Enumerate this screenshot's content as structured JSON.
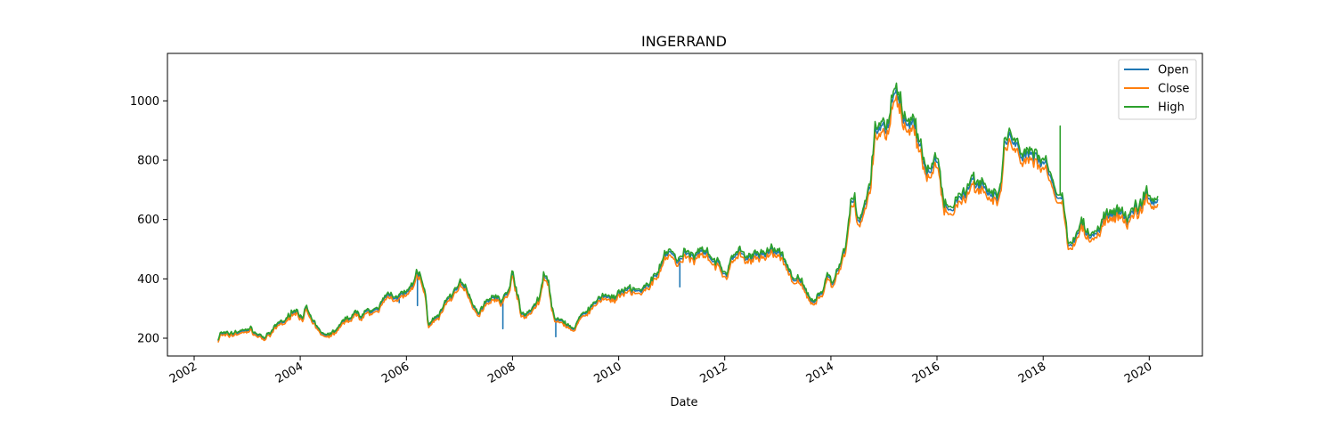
{
  "chart_data": {
    "type": "line",
    "title": "INGERRAND",
    "xlabel": "Date",
    "ylabel": "",
    "x_range": [
      "2001-07-01",
      "2021-01-01"
    ],
    "ylim": [
      140,
      1160
    ],
    "x_ticks": [
      "2002",
      "2004",
      "2006",
      "2008",
      "2010",
      "2012",
      "2014",
      "2016",
      "2018",
      "2020"
    ],
    "y_ticks": [
      200,
      400,
      600,
      800,
      1000
    ],
    "legend": "top-right",
    "grid": false,
    "series": [
      {
        "name": "Open",
        "color": "#1f77b4",
        "offset": 0,
        "spikes": [
          [
            "2005-11-15",
            320
          ],
          [
            "2006-03-20",
            310
          ],
          [
            "2007-10-25",
            232
          ],
          [
            "2008-10-25",
            205
          ],
          [
            "2011-03-01",
            373
          ]
        ]
      },
      {
        "name": "Close",
        "color": "#ff7f0e",
        "offset": -12,
        "spikes": []
      },
      {
        "name": "High",
        "color": "#2ca02c",
        "offset": 8,
        "spikes": [
          [
            "2018-05-01",
            915
          ]
        ]
      }
    ],
    "points": [
      [
        "2002-06-15",
        192
      ],
      [
        "2002-07-01",
        220
      ],
      [
        "2002-08-15",
        208
      ],
      [
        "2002-10-01",
        218
      ],
      [
        "2002-12-01",
        222
      ],
      [
        "2003-01-15",
        232
      ],
      [
        "2003-03-01",
        215
      ],
      [
        "2003-05-01",
        200
      ],
      [
        "2003-06-15",
        215
      ],
      [
        "2003-08-01",
        248
      ],
      [
        "2003-10-01",
        262
      ],
      [
        "2003-11-01",
        290
      ],
      [
        "2003-12-15",
        295
      ],
      [
        "2004-01-15",
        270
      ],
      [
        "2004-02-15",
        300
      ],
      [
        "2004-03-15",
        258
      ],
      [
        "2004-05-01",
        232
      ],
      [
        "2004-06-01",
        212
      ],
      [
        "2004-07-15",
        205
      ],
      [
        "2004-09-01",
        222
      ],
      [
        "2004-10-15",
        245
      ],
      [
        "2004-12-01",
        265
      ],
      [
        "2005-01-15",
        282
      ],
      [
        "2005-03-01",
        272
      ],
      [
        "2005-04-01",
        302
      ],
      [
        "2005-05-15",
        285
      ],
      [
        "2005-07-01",
        300
      ],
      [
        "2005-08-01",
        330
      ],
      [
        "2005-09-01",
        345
      ],
      [
        "2005-11-01",
        340
      ],
      [
        "2006-01-01",
        345
      ],
      [
        "2006-02-15",
        365
      ],
      [
        "2006-03-15",
        418
      ],
      [
        "2006-04-15",
        400
      ],
      [
        "2006-05-15",
        330
      ],
      [
        "2006-06-01",
        245
      ],
      [
        "2006-07-01",
        255
      ],
      [
        "2006-08-15",
        280
      ],
      [
        "2006-10-01",
        320
      ],
      [
        "2006-11-15",
        345
      ],
      [
        "2007-01-01",
        392
      ],
      [
        "2007-02-15",
        355
      ],
      [
        "2007-04-01",
        310
      ],
      [
        "2007-05-15",
        285
      ],
      [
        "2007-07-01",
        330
      ],
      [
        "2007-09-01",
        345
      ],
      [
        "2007-10-15",
        315
      ],
      [
        "2007-12-01",
        355
      ],
      [
        "2008-01-01",
        415
      ],
      [
        "2008-02-01",
        355
      ],
      [
        "2008-03-01",
        275
      ],
      [
        "2008-05-01",
        285
      ],
      [
        "2008-07-01",
        330
      ],
      [
        "2008-08-01",
        410
      ],
      [
        "2008-09-01",
        385
      ],
      [
        "2008-10-15",
        255
      ],
      [
        "2008-12-01",
        258
      ],
      [
        "2009-01-15",
        242
      ],
      [
        "2009-03-01",
        228
      ],
      [
        "2009-04-01",
        262
      ],
      [
        "2009-06-01",
        295
      ],
      [
        "2009-08-01",
        320
      ],
      [
        "2009-10-01",
        345
      ],
      [
        "2009-12-01",
        332
      ],
      [
        "2010-02-01",
        350
      ],
      [
        "2010-04-01",
        362
      ],
      [
        "2010-06-01",
        352
      ],
      [
        "2010-08-01",
        370
      ],
      [
        "2010-10-01",
        430
      ],
      [
        "2010-11-15",
        478
      ],
      [
        "2011-01-01",
        492
      ],
      [
        "2011-02-15",
        455
      ],
      [
        "2011-04-01",
        490
      ],
      [
        "2011-06-01",
        465
      ],
      [
        "2011-08-01",
        505
      ],
      [
        "2011-10-01",
        478
      ],
      [
        "2011-12-01",
        432
      ],
      [
        "2012-01-15",
        410
      ],
      [
        "2012-02-15",
        470
      ],
      [
        "2012-04-01",
        478
      ],
      [
        "2012-06-01",
        472
      ],
      [
        "2012-08-01",
        480
      ],
      [
        "2012-10-01",
        472
      ],
      [
        "2012-11-15",
        492
      ],
      [
        "2013-01-01",
        490
      ],
      [
        "2013-02-15",
        438
      ],
      [
        "2013-04-01",
        412
      ],
      [
        "2013-06-01",
        392
      ],
      [
        "2013-08-01",
        325
      ],
      [
        "2013-09-01",
        318
      ],
      [
        "2013-11-01",
        355
      ],
      [
        "2013-12-15",
        410
      ],
      [
        "2014-01-15",
        385
      ],
      [
        "2014-03-01",
        445
      ],
      [
        "2014-04-15",
        495
      ],
      [
        "2014-05-15",
        640
      ],
      [
        "2014-06-15",
        650
      ],
      [
        "2014-07-15",
        580
      ],
      [
        "2014-08-15",
        640
      ],
      [
        "2014-10-01",
        720
      ],
      [
        "2014-11-01",
        890
      ],
      [
        "2014-12-15",
        900
      ],
      [
        "2015-01-15",
        880
      ],
      [
        "2015-02-15",
        960
      ],
      [
        "2015-03-15",
        1060
      ],
      [
        "2015-04-15",
        1000
      ],
      [
        "2015-05-15",
        935
      ],
      [
        "2015-06-15",
        910
      ],
      [
        "2015-07-15",
        960
      ],
      [
        "2015-08-15",
        890
      ],
      [
        "2015-10-01",
        790
      ],
      [
        "2015-11-01",
        755
      ],
      [
        "2015-12-15",
        800
      ],
      [
        "2016-01-15",
        760
      ],
      [
        "2016-02-15",
        650
      ],
      [
        "2016-04-01",
        640
      ],
      [
        "2016-05-15",
        668
      ],
      [
        "2016-07-01",
        700
      ],
      [
        "2016-08-15",
        728
      ],
      [
        "2016-10-01",
        718
      ],
      [
        "2016-11-15",
        728
      ],
      [
        "2017-01-01",
        680
      ],
      [
        "2017-02-15",
        670
      ],
      [
        "2017-03-15",
        695
      ],
      [
        "2017-04-15",
        860
      ],
      [
        "2017-05-15",
        878
      ],
      [
        "2017-06-15",
        860
      ],
      [
        "2017-07-15",
        832
      ],
      [
        "2017-08-15",
        805
      ],
      [
        "2017-10-01",
        792
      ],
      [
        "2017-11-15",
        800
      ],
      [
        "2018-01-01",
        788
      ],
      [
        "2018-02-15",
        760
      ],
      [
        "2018-04-01",
        690
      ],
      [
        "2018-05-15",
        678
      ],
      [
        "2018-06-15",
        535
      ],
      [
        "2018-07-15",
        515
      ],
      [
        "2018-08-15",
        548
      ],
      [
        "2018-09-15",
        608
      ],
      [
        "2018-10-15",
        570
      ],
      [
        "2018-12-01",
        540
      ],
      [
        "2019-01-15",
        560
      ],
      [
        "2019-03-01",
        600
      ],
      [
        "2019-04-15",
        620
      ],
      [
        "2019-06-01",
        610
      ],
      [
        "2019-08-01",
        605
      ],
      [
        "2019-09-15",
        630
      ],
      [
        "2019-11-01",
        650
      ],
      [
        "2019-12-15",
        690
      ],
      [
        "2020-01-15",
        660
      ],
      [
        "2020-03-01",
        650
      ]
    ]
  }
}
